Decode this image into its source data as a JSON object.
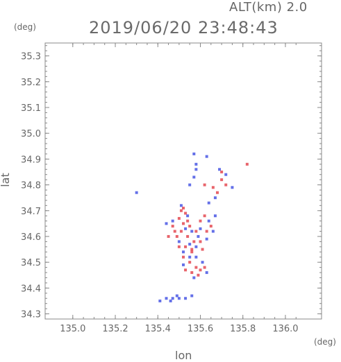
{
  "header": {
    "altitude_label": "ALT(km) 2.0",
    "timestamp": "2019/06/20 23:48:43"
  },
  "chart_data": {
    "type": "scatter",
    "title": "2019/06/20 23:48:43",
    "xlabel": "lon",
    "ylabel": "lat",
    "x_unit": "(deg)",
    "y_unit": "(deg)",
    "xlim": [
      134.87,
      136.17
    ],
    "ylim": [
      34.28,
      35.35
    ],
    "xticks": [
      "135.0",
      "135.2",
      "135.4",
      "135.6",
      "135.8",
      "136.0"
    ],
    "yticks": [
      "34.3",
      "34.4",
      "34.5",
      "34.6",
      "34.7",
      "34.8",
      "34.9",
      "35.0",
      "35.1",
      "35.2",
      "35.3"
    ],
    "grid": false,
    "colors": {
      "positive": "#e0303a",
      "negative": "#3040e0",
      "axis": "#888888"
    },
    "series": [
      {
        "values": [
          [
            135.51,
            34.7,
            1
          ],
          [
            135.52,
            34.71,
            1
          ],
          [
            135.53,
            34.69,
            1
          ],
          [
            135.5,
            34.67,
            1
          ],
          [
            135.52,
            34.65,
            1
          ],
          [
            135.55,
            34.64,
            1
          ],
          [
            135.58,
            34.62,
            1
          ],
          [
            135.51,
            34.62,
            1
          ],
          [
            135.49,
            34.6,
            1
          ],
          [
            135.54,
            34.6,
            1
          ],
          [
            135.57,
            34.58,
            1
          ],
          [
            135.6,
            34.58,
            1
          ],
          [
            135.53,
            34.56,
            1
          ],
          [
            135.56,
            34.54,
            1
          ],
          [
            135.52,
            34.52,
            1
          ],
          [
            135.55,
            34.5,
            1
          ],
          [
            135.58,
            34.48,
            1
          ],
          [
            135.6,
            34.47,
            1
          ],
          [
            135.62,
            34.48,
            1
          ],
          [
            135.59,
            34.45,
            1
          ],
          [
            135.53,
            34.47,
            1
          ],
          [
            135.56,
            34.46,
            1
          ],
          [
            135.61,
            34.55,
            1
          ],
          [
            135.63,
            34.62,
            1
          ],
          [
            135.65,
            34.64,
            1
          ],
          [
            135.6,
            34.66,
            1
          ],
          [
            135.62,
            34.68,
            1
          ],
          [
            135.47,
            34.64,
            1
          ],
          [
            135.45,
            34.6,
            1
          ],
          [
            135.5,
            34.56,
            1
          ],
          [
            135.62,
            34.8,
            1
          ],
          [
            135.66,
            34.79,
            1
          ],
          [
            135.7,
            34.85,
            1
          ],
          [
            135.72,
            34.8,
            1
          ],
          [
            135.68,
            34.77,
            1
          ],
          [
            135.82,
            34.88,
            1
          ],
          [
            135.7,
            34.82,
            1
          ],
          [
            135.56,
            34.55,
            1
          ],
          [
            135.54,
            34.66,
            1
          ],
          [
            135.48,
            34.62,
            1
          ],
          [
            135.51,
            34.72,
            -1
          ],
          [
            135.54,
            34.68,
            -1
          ],
          [
            135.47,
            34.66,
            -1
          ],
          [
            135.44,
            34.65,
            -1
          ],
          [
            135.56,
            34.62,
            -1
          ],
          [
            135.59,
            34.6,
            -1
          ],
          [
            135.63,
            34.59,
            -1
          ],
          [
            135.66,
            34.62,
            -1
          ],
          [
            135.64,
            34.66,
            -1
          ],
          [
            135.55,
            34.57,
            -1
          ],
          [
            135.52,
            34.54,
            -1
          ],
          [
            135.58,
            34.52,
            -1
          ],
          [
            135.61,
            34.5,
            -1
          ],
          [
            135.63,
            34.46,
            -1
          ],
          [
            135.57,
            34.44,
            -1
          ],
          [
            135.52,
            34.49,
            -1
          ],
          [
            135.5,
            34.58,
            -1
          ],
          [
            135.55,
            34.52,
            -1
          ],
          [
            135.6,
            34.63,
            -1
          ],
          [
            135.67,
            34.68,
            -1
          ],
          [
            135.57,
            34.83,
            -1
          ],
          [
            135.55,
            34.8,
            -1
          ],
          [
            135.58,
            34.86,
            -1
          ],
          [
            135.69,
            34.86,
            -1
          ],
          [
            135.72,
            34.84,
            -1
          ],
          [
            135.75,
            34.79,
            -1
          ],
          [
            135.67,
            34.75,
            -1
          ],
          [
            135.64,
            34.73,
            -1
          ],
          [
            135.3,
            34.77,
            -1
          ],
          [
            135.58,
            34.88,
            -1
          ],
          [
            135.63,
            34.91,
            -1
          ],
          [
            135.41,
            34.35,
            -1
          ],
          [
            135.44,
            34.36,
            -1
          ],
          [
            135.47,
            34.36,
            -1
          ],
          [
            135.5,
            34.36,
            -1
          ],
          [
            135.53,
            34.36,
            -1
          ],
          [
            135.56,
            34.37,
            -1
          ],
          [
            135.46,
            34.35,
            -1
          ],
          [
            135.49,
            34.37,
            -1
          ],
          [
            135.57,
            34.92,
            -1
          ],
          [
            135.53,
            34.63,
            -1
          ],
          [
            135.58,
            34.56,
            -1
          ]
        ]
      }
    ]
  }
}
